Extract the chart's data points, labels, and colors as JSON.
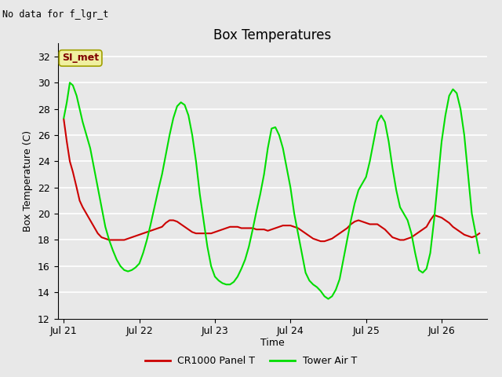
{
  "title": "Box Temperatures",
  "ylabel": "Box Temperature (C)",
  "xlabel": "Time",
  "no_data_text": "No data for f_lgr_t",
  "si_met_label": "SI_met",
  "ylim": [
    12,
    33
  ],
  "yticks": [
    12,
    14,
    16,
    18,
    20,
    22,
    24,
    26,
    28,
    30,
    32
  ],
  "bg_color": "#e8e8e8",
  "grid_color": "#ffffff",
  "line_color_red": "#cc0000",
  "line_color_green": "#00dd00",
  "legend_labels": [
    "CR1000 Panel T",
    "Tower Air T"
  ],
  "x_tick_labels": [
    "Jul 21",
    "Jul 22",
    "Jul 23",
    "Jul 24",
    "Jul 25",
    "Jul 26"
  ],
  "x_tick_positions": [
    0,
    1,
    2,
    3,
    4,
    5
  ],
  "red_x": [
    0.0,
    0.04,
    0.08,
    0.12,
    0.17,
    0.21,
    0.25,
    0.3,
    0.35,
    0.4,
    0.45,
    0.5,
    0.55,
    0.6,
    0.65,
    0.7,
    0.75,
    0.8,
    0.85,
    0.9,
    0.95,
    1.0,
    1.05,
    1.1,
    1.15,
    1.2,
    1.25,
    1.3,
    1.35,
    1.4,
    1.45,
    1.5,
    1.55,
    1.6,
    1.65,
    1.7,
    1.75,
    1.8,
    1.85,
    1.9,
    1.95,
    2.0,
    2.05,
    2.1,
    2.15,
    2.2,
    2.25,
    2.3,
    2.35,
    2.4,
    2.45,
    2.5,
    2.55,
    2.6,
    2.65,
    2.7,
    2.75,
    2.8,
    2.85,
    2.9,
    2.95,
    3.0,
    3.05,
    3.1,
    3.15,
    3.2,
    3.25,
    3.3,
    3.35,
    3.4,
    3.45,
    3.5,
    3.55,
    3.6,
    3.65,
    3.7,
    3.75,
    3.8,
    3.85,
    3.9,
    3.95,
    4.0,
    4.05,
    4.1,
    4.15,
    4.2,
    4.25,
    4.3,
    4.35,
    4.4,
    4.45,
    4.5,
    4.55,
    4.6,
    4.65,
    4.7,
    4.75,
    4.8,
    4.85,
    4.9,
    4.95,
    5.0,
    5.05,
    5.1,
    5.15,
    5.2,
    5.25,
    5.3,
    5.35,
    5.4,
    5.45,
    5.5
  ],
  "red_y": [
    27.2,
    25.5,
    24.0,
    23.2,
    22.0,
    21.0,
    20.5,
    20.0,
    19.5,
    19.0,
    18.5,
    18.2,
    18.1,
    18.0,
    18.0,
    18.0,
    18.0,
    18.0,
    18.1,
    18.2,
    18.3,
    18.4,
    18.5,
    18.6,
    18.7,
    18.8,
    18.9,
    19.0,
    19.3,
    19.5,
    19.5,
    19.4,
    19.2,
    19.0,
    18.8,
    18.6,
    18.5,
    18.5,
    18.5,
    18.5,
    18.5,
    18.6,
    18.7,
    18.8,
    18.9,
    19.0,
    19.0,
    19.0,
    18.9,
    18.9,
    18.9,
    18.9,
    18.8,
    18.8,
    18.8,
    18.7,
    18.8,
    18.9,
    19.0,
    19.1,
    19.1,
    19.1,
    19.0,
    18.9,
    18.7,
    18.5,
    18.3,
    18.1,
    18.0,
    17.9,
    17.9,
    18.0,
    18.1,
    18.3,
    18.5,
    18.7,
    18.9,
    19.2,
    19.4,
    19.5,
    19.4,
    19.3,
    19.2,
    19.2,
    19.2,
    19.0,
    18.8,
    18.5,
    18.2,
    18.1,
    18.0,
    18.0,
    18.1,
    18.2,
    18.4,
    18.6,
    18.8,
    19.0,
    19.5,
    19.9,
    19.8,
    19.7,
    19.5,
    19.3,
    19.0,
    18.8,
    18.6,
    18.4,
    18.3,
    18.2,
    18.3,
    18.5
  ],
  "green_x": [
    0.0,
    0.04,
    0.08,
    0.12,
    0.17,
    0.21,
    0.25,
    0.3,
    0.35,
    0.4,
    0.45,
    0.5,
    0.55,
    0.6,
    0.65,
    0.7,
    0.75,
    0.8,
    0.85,
    0.9,
    0.95,
    1.0,
    1.05,
    1.1,
    1.15,
    1.2,
    1.25,
    1.3,
    1.35,
    1.4,
    1.45,
    1.5,
    1.55,
    1.6,
    1.65,
    1.7,
    1.75,
    1.8,
    1.85,
    1.9,
    1.95,
    2.0,
    2.05,
    2.1,
    2.15,
    2.2,
    2.25,
    2.3,
    2.35,
    2.4,
    2.45,
    2.5,
    2.55,
    2.6,
    2.65,
    2.7,
    2.75,
    2.8,
    2.85,
    2.9,
    2.95,
    3.0,
    3.05,
    3.1,
    3.15,
    3.2,
    3.25,
    3.3,
    3.35,
    3.4,
    3.45,
    3.5,
    3.55,
    3.6,
    3.65,
    3.7,
    3.75,
    3.8,
    3.85,
    3.9,
    3.95,
    4.0,
    4.05,
    4.1,
    4.15,
    4.2,
    4.25,
    4.3,
    4.35,
    4.4,
    4.45,
    4.5,
    4.55,
    4.6,
    4.65,
    4.7,
    4.75,
    4.8,
    4.85,
    4.9,
    4.95,
    5.0,
    5.05,
    5.1,
    5.15,
    5.2,
    5.25,
    5.3,
    5.35,
    5.4,
    5.45,
    5.5
  ],
  "green_y": [
    27.3,
    28.5,
    30.0,
    29.8,
    29.0,
    28.0,
    27.0,
    26.0,
    25.0,
    23.5,
    22.0,
    20.5,
    19.0,
    18.0,
    17.2,
    16.5,
    16.0,
    15.7,
    15.6,
    15.7,
    15.9,
    16.2,
    17.0,
    18.0,
    19.2,
    20.5,
    21.8,
    23.0,
    24.5,
    26.0,
    27.3,
    28.2,
    28.5,
    28.3,
    27.5,
    26.0,
    24.0,
    21.5,
    19.5,
    17.5,
    16.0,
    15.2,
    14.9,
    14.7,
    14.6,
    14.6,
    14.8,
    15.2,
    15.8,
    16.5,
    17.5,
    18.8,
    20.2,
    21.5,
    23.0,
    25.0,
    26.5,
    26.6,
    26.0,
    25.0,
    23.5,
    22.0,
    20.0,
    18.5,
    17.0,
    15.5,
    14.9,
    14.6,
    14.4,
    14.1,
    13.7,
    13.5,
    13.7,
    14.2,
    15.0,
    16.5,
    18.0,
    19.5,
    20.8,
    21.8,
    22.3,
    22.8,
    24.0,
    25.5,
    27.0,
    27.5,
    27.0,
    25.5,
    23.5,
    21.8,
    20.5,
    20.0,
    19.5,
    18.5,
    17.0,
    15.7,
    15.5,
    15.8,
    17.0,
    19.5,
    22.5,
    25.5,
    27.5,
    29.0,
    29.5,
    29.2,
    28.0,
    26.0,
    23.0,
    20.0,
    18.5,
    17.0
  ]
}
